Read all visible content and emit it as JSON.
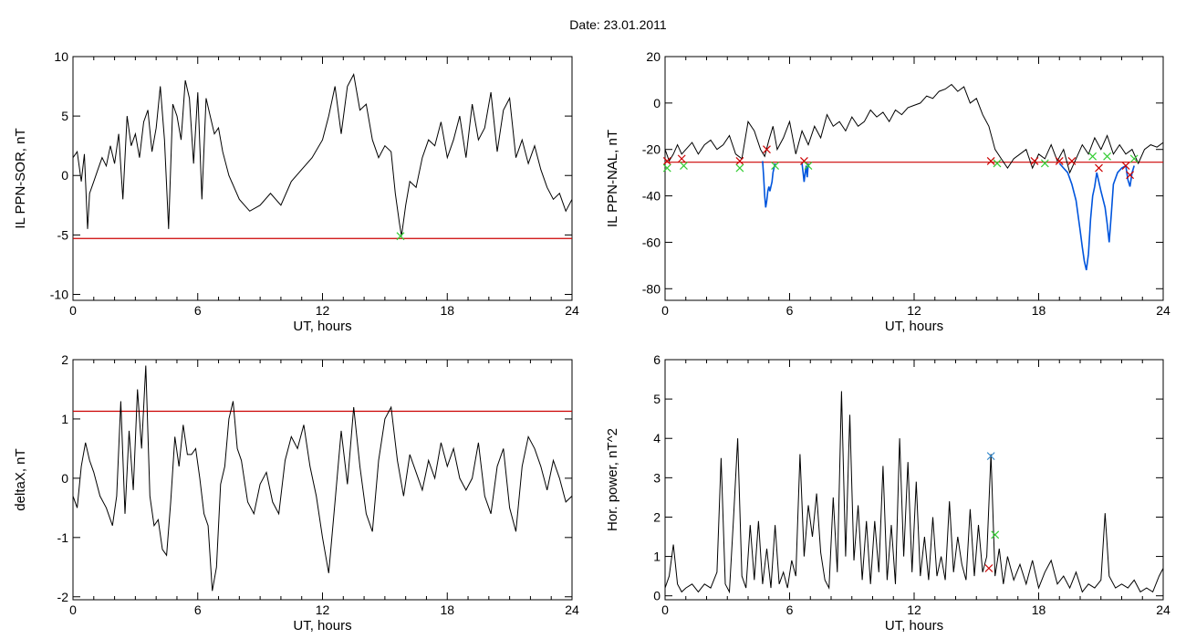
{
  "title": "Date:  23.01.2011",
  "chart_data": [
    {
      "type": "line",
      "xlabel": "UT, hours",
      "ylabel": "IL PPN-SOR, nT",
      "xlim": [
        0,
        24
      ],
      "ylim": [
        -10.5,
        10
      ],
      "xticks": [
        "0",
        "6",
        "12",
        "18",
        "24"
      ],
      "yticks": [
        -10,
        -5,
        0,
        5,
        10
      ],
      "threshold": -5.3,
      "threshold_color": "#cc0000",
      "series": [
        {
          "color": "#000000",
          "x": [
            0.0,
            0.2,
            0.4,
            0.55,
            0.7,
            0.8,
            1.0,
            1.2,
            1.4,
            1.6,
            1.8,
            2.0,
            2.2,
            2.4,
            2.6,
            2.8,
            3.0,
            3.2,
            3.4,
            3.6,
            3.8,
            4.0,
            4.2,
            4.4,
            4.6,
            4.8,
            5.0,
            5.2,
            5.4,
            5.6,
            5.8,
            6.0,
            6.2,
            6.4,
            6.6,
            6.8,
            7.0,
            7.2,
            7.5,
            8.0,
            8.5,
            9.0,
            9.5,
            10.0,
            10.5,
            11.0,
            11.5,
            12.0,
            12.3,
            12.6,
            12.9,
            13.2,
            13.5,
            13.8,
            14.1,
            14.4,
            14.7,
            15.0,
            15.3,
            15.5,
            15.7,
            15.8,
            16.0,
            16.2,
            16.5,
            16.8,
            17.1,
            17.4,
            17.7,
            18.0,
            18.3,
            18.6,
            18.9,
            19.2,
            19.5,
            19.8,
            20.1,
            20.4,
            20.7,
            21.0,
            21.3,
            21.6,
            21.9,
            22.2,
            22.5,
            22.8,
            23.1,
            23.4,
            23.7,
            24.0
          ],
          "y": [
            1.5,
            2.0,
            -0.5,
            1.8,
            -4.5,
            -1.5,
            -0.5,
            0.5,
            1.5,
            0.8,
            2.5,
            1.0,
            3.5,
            -2.0,
            5.0,
            2.5,
            3.5,
            1.5,
            4.5,
            5.5,
            2.0,
            4.0,
            7.5,
            3.0,
            -4.5,
            6.0,
            5.0,
            3.0,
            8.0,
            6.5,
            1.0,
            7.0,
            -2.0,
            6.5,
            5.0,
            3.5,
            4.0,
            2.0,
            0.0,
            -2.0,
            -3.0,
            -2.5,
            -1.5,
            -2.5,
            -0.5,
            0.5,
            1.5,
            3.0,
            5.0,
            7.5,
            3.5,
            7.5,
            8.5,
            5.5,
            6.0,
            3.0,
            1.5,
            2.5,
            2.0,
            -1.5,
            -4.0,
            -5.1,
            -2.5,
            -0.5,
            -1.0,
            1.5,
            3.0,
            2.5,
            4.5,
            1.5,
            3.0,
            5.0,
            1.5,
            6.0,
            3.0,
            4.0,
            7.0,
            2.0,
            5.5,
            6.5,
            1.5,
            3.0,
            1.0,
            2.5,
            0.5,
            -1.0,
            -2.0,
            -1.5,
            -3.0,
            -2.0
          ]
        }
      ],
      "markers": [
        {
          "x": 15.75,
          "y": -5.1,
          "color": "#33cc33"
        }
      ]
    },
    {
      "type": "line",
      "xlabel": "UT, hours",
      "ylabel": "IL PPN-NAL, nT",
      "xlim": [
        0,
        24
      ],
      "ylim": [
        -85,
        20
      ],
      "xticks": [
        "0",
        "6",
        "12",
        "18",
        "24"
      ],
      "yticks": [
        -80,
        -60,
        -40,
        -20,
        0,
        20
      ],
      "threshold": -25.5,
      "threshold_color": "#cc0000",
      "series": [
        {
          "color": "#000000",
          "x": [
            0.0,
            0.2,
            0.4,
            0.6,
            0.8,
            1.0,
            1.3,
            1.6,
            1.9,
            2.2,
            2.5,
            2.8,
            3.1,
            3.4,
            3.7,
            4.0,
            4.3,
            4.6,
            4.8,
            5.0,
            5.2,
            5.4,
            5.7,
            6.0,
            6.3,
            6.6,
            6.9,
            7.2,
            7.5,
            7.8,
            8.1,
            8.4,
            8.7,
            9.0,
            9.3,
            9.6,
            9.9,
            10.2,
            10.5,
            10.8,
            11.1,
            11.4,
            11.7,
            12.0,
            12.3,
            12.6,
            12.9,
            13.2,
            13.5,
            13.8,
            14.1,
            14.4,
            14.7,
            15.0,
            15.3,
            15.6,
            15.9,
            16.2,
            16.5,
            16.8,
            17.1,
            17.4,
            17.7,
            18.0,
            18.3,
            18.6,
            18.9,
            19.2,
            19.5,
            19.8,
            20.1,
            20.4,
            20.7,
            21.0,
            21.3,
            21.6,
            21.9,
            22.2,
            22.5,
            22.8,
            23.1,
            23.4,
            23.7,
            24.0
          ],
          "y": [
            -20,
            -25,
            -22,
            -18,
            -22,
            -20,
            -17,
            -22,
            -18,
            -16,
            -20,
            -18,
            -14,
            -22,
            -24,
            -8,
            -12,
            -20,
            -23,
            -16,
            -10,
            -20,
            -15,
            -8,
            -22,
            -12,
            -18,
            -10,
            -15,
            -5,
            -10,
            -8,
            -12,
            -6,
            -10,
            -8,
            -3,
            -6,
            -4,
            -8,
            -3,
            -5,
            -2,
            -1,
            0,
            3,
            2,
            5,
            6,
            8,
            5,
            7,
            0,
            2,
            -5,
            -10,
            -20,
            -24,
            -28,
            -24,
            -22,
            -20,
            -28,
            -22,
            -24,
            -18,
            -25,
            -20,
            -30,
            -24,
            -18,
            -22,
            -15,
            -20,
            -14,
            -22,
            -18,
            -22,
            -20,
            -26,
            -20,
            -18,
            -19,
            -17
          ]
        },
        {
          "color": "#0055dd",
          "x": [
            4.7,
            4.75,
            4.8,
            4.85,
            4.9,
            4.95,
            5.0,
            5.05,
            5.1,
            5.15,
            5.2,
            5.25,
            5.3
          ],
          "y": [
            -25,
            -32,
            -40,
            -45,
            -42,
            -38,
            -36,
            -38,
            -36,
            -34,
            -30,
            -28,
            -26
          ]
        },
        {
          "color": "#0055dd",
          "x": [
            6.6,
            6.65,
            6.7,
            6.75,
            6.8,
            6.85,
            6.9
          ],
          "y": [
            -26,
            -30,
            -34,
            -30,
            -27,
            -32,
            -26
          ]
        },
        {
          "color": "#0055dd",
          "x": [
            19.0,
            19.2,
            19.4,
            19.6,
            19.8,
            20.0,
            20.1,
            20.2,
            20.3,
            20.4,
            20.5,
            20.6,
            20.7,
            20.8,
            21.0,
            21.2,
            21.3,
            21.4,
            21.5,
            21.6,
            21.8,
            22.0,
            22.2,
            22.3,
            22.4,
            22.5,
            22.6
          ],
          "y": [
            -26,
            -28,
            -30,
            -35,
            -42,
            -55,
            -62,
            -68,
            -72,
            -65,
            -50,
            -40,
            -36,
            -30,
            -38,
            -45,
            -52,
            -60,
            -48,
            -35,
            -30,
            -28,
            -27,
            -33,
            -36,
            -30,
            -27
          ]
        }
      ],
      "markers": [
        {
          "x": 0.1,
          "y": -25,
          "color": "#cc0000"
        },
        {
          "x": 0.8,
          "y": -24,
          "color": "#cc0000"
        },
        {
          "x": 3.6,
          "y": -25,
          "color": "#cc0000"
        },
        {
          "x": 4.9,
          "y": -20,
          "color": "#cc0000"
        },
        {
          "x": 6.7,
          "y": -25,
          "color": "#cc0000"
        },
        {
          "x": 15.7,
          "y": -25,
          "color": "#cc0000"
        },
        {
          "x": 17.8,
          "y": -25,
          "color": "#cc0000"
        },
        {
          "x": 19.0,
          "y": -25,
          "color": "#cc0000"
        },
        {
          "x": 19.6,
          "y": -25,
          "color": "#cc0000"
        },
        {
          "x": 20.9,
          "y": -28,
          "color": "#cc0000"
        },
        {
          "x": 22.2,
          "y": -27,
          "color": "#cc0000"
        },
        {
          "x": 22.4,
          "y": -31,
          "color": "#cc0000"
        },
        {
          "x": 0.1,
          "y": -28,
          "color": "#33cc33"
        },
        {
          "x": 0.9,
          "y": -27,
          "color": "#33cc33"
        },
        {
          "x": 3.6,
          "y": -28,
          "color": "#33cc33"
        },
        {
          "x": 5.3,
          "y": -27,
          "color": "#33cc33"
        },
        {
          "x": 6.9,
          "y": -27,
          "color": "#33cc33"
        },
        {
          "x": 16.0,
          "y": -26,
          "color": "#33cc33"
        },
        {
          "x": 18.3,
          "y": -26,
          "color": "#33cc33"
        },
        {
          "x": 20.6,
          "y": -23,
          "color": "#33cc33"
        },
        {
          "x": 21.3,
          "y": -23,
          "color": "#33cc33"
        },
        {
          "x": 22.6,
          "y": -24,
          "color": "#33cc33"
        }
      ]
    },
    {
      "type": "line",
      "xlabel": "UT, hours",
      "ylabel": "deltaX, nT",
      "xlim": [
        0,
        24
      ],
      "ylim": [
        -2.05,
        2
      ],
      "xticks": [
        "0",
        "6",
        "12",
        "18",
        "24"
      ],
      "yticks": [
        -2,
        -1,
        0,
        1,
        2
      ],
      "threshold": 1.13,
      "threshold_color": "#cc0000",
      "series": [
        {
          "color": "#000000",
          "x": [
            0.0,
            0.2,
            0.4,
            0.6,
            0.8,
            1.0,
            1.3,
            1.6,
            1.9,
            2.1,
            2.3,
            2.5,
            2.7,
            2.9,
            3.1,
            3.3,
            3.5,
            3.7,
            3.9,
            4.1,
            4.3,
            4.5,
            4.7,
            4.9,
            5.1,
            5.3,
            5.5,
            5.7,
            5.9,
            6.1,
            6.3,
            6.5,
            6.7,
            6.9,
            7.1,
            7.3,
            7.5,
            7.7,
            7.9,
            8.1,
            8.4,
            8.7,
            9.0,
            9.3,
            9.6,
            9.9,
            10.2,
            10.5,
            10.8,
            11.1,
            11.4,
            11.7,
            12.0,
            12.3,
            12.6,
            12.9,
            13.2,
            13.5,
            13.8,
            14.1,
            14.4,
            14.7,
            15.0,
            15.3,
            15.6,
            15.9,
            16.2,
            16.5,
            16.8,
            17.1,
            17.4,
            17.7,
            18.0,
            18.3,
            18.6,
            18.9,
            19.2,
            19.5,
            19.8,
            20.1,
            20.4,
            20.7,
            21.0,
            21.3,
            21.6,
            21.9,
            22.2,
            22.5,
            22.8,
            23.1,
            23.4,
            23.7,
            24.0
          ],
          "y": [
            -0.3,
            -0.5,
            0.2,
            0.6,
            0.3,
            0.1,
            -0.3,
            -0.5,
            -0.8,
            -0.3,
            1.3,
            -0.6,
            0.8,
            -0.2,
            1.5,
            0.5,
            1.9,
            -0.3,
            -0.8,
            -0.7,
            -1.2,
            -1.3,
            -0.4,
            0.7,
            0.2,
            0.9,
            0.4,
            0.4,
            0.5,
            0.0,
            -0.6,
            -0.8,
            -1.9,
            -1.5,
            -0.1,
            0.2,
            1.0,
            1.3,
            0.5,
            0.3,
            -0.4,
            -0.6,
            -0.1,
            0.1,
            -0.4,
            -0.6,
            0.3,
            0.7,
            0.5,
            0.9,
            0.2,
            -0.3,
            -1.0,
            -1.6,
            -0.4,
            0.8,
            -0.1,
            1.2,
            0.2,
            -0.6,
            -0.9,
            0.3,
            1.0,
            1.2,
            0.3,
            -0.3,
            0.4,
            0.1,
            -0.2,
            0.3,
            0.0,
            0.6,
            0.2,
            0.5,
            0.0,
            -0.2,
            0.0,
            0.6,
            -0.3,
            -0.6,
            0.2,
            0.5,
            -0.5,
            -0.9,
            0.2,
            0.7,
            0.5,
            0.2,
            -0.2,
            0.3,
            0.0,
            -0.4,
            -0.3
          ]
        }
      ],
      "markers": []
    },
    {
      "type": "line",
      "xlabel": "UT, hours",
      "ylabel": "Hor. power, nT^2",
      "xlim": [
        0,
        24
      ],
      "ylim": [
        -0.1,
        6
      ],
      "xticks": [
        "0",
        "6",
        "12",
        "18",
        "24"
      ],
      "yticks": [
        0,
        1,
        2,
        3,
        4,
        5,
        6
      ],
      "threshold": null,
      "series": [
        {
          "color": "#000000",
          "x": [
            0.0,
            0.2,
            0.4,
            0.6,
            0.8,
            1.0,
            1.3,
            1.6,
            1.9,
            2.2,
            2.5,
            2.7,
            2.9,
            3.1,
            3.3,
            3.5,
            3.7,
            3.9,
            4.1,
            4.3,
            4.5,
            4.7,
            4.9,
            5.1,
            5.3,
            5.5,
            5.7,
            5.9,
            6.1,
            6.3,
            6.5,
            6.7,
            6.9,
            7.1,
            7.3,
            7.5,
            7.7,
            7.9,
            8.1,
            8.3,
            8.5,
            8.7,
            8.9,
            9.1,
            9.3,
            9.5,
            9.7,
            9.9,
            10.1,
            10.3,
            10.5,
            10.7,
            10.9,
            11.1,
            11.3,
            11.5,
            11.7,
            11.9,
            12.1,
            12.3,
            12.5,
            12.7,
            12.9,
            13.1,
            13.3,
            13.5,
            13.7,
            13.9,
            14.1,
            14.3,
            14.5,
            14.7,
            14.9,
            15.1,
            15.3,
            15.5,
            15.7,
            15.9,
            16.1,
            16.3,
            16.5,
            16.8,
            17.1,
            17.4,
            17.7,
            18.0,
            18.3,
            18.6,
            18.9,
            19.2,
            19.5,
            19.8,
            20.1,
            20.4,
            20.7,
            21.0,
            21.2,
            21.4,
            21.7,
            22.0,
            22.3,
            22.6,
            22.9,
            23.2,
            23.5,
            23.8,
            24.0
          ],
          "y": [
            0.2,
            0.5,
            1.3,
            0.3,
            0.1,
            0.2,
            0.3,
            0.1,
            0.3,
            0.2,
            0.6,
            3.5,
            0.3,
            0.1,
            2.0,
            4.0,
            0.5,
            0.2,
            1.8,
            0.4,
            1.9,
            0.3,
            1.2,
            0.2,
            1.8,
            0.3,
            0.6,
            0.2,
            0.9,
            0.5,
            3.6,
            1.0,
            2.3,
            1.5,
            2.6,
            1.1,
            0.4,
            0.2,
            2.5,
            0.6,
            5.2,
            1.0,
            4.6,
            0.9,
            2.3,
            0.4,
            1.9,
            0.3,
            1.9,
            0.6,
            3.3,
            0.4,
            1.8,
            0.3,
            4.0,
            1.0,
            3.4,
            0.6,
            2.9,
            0.5,
            1.5,
            0.4,
            2.0,
            0.5,
            1.0,
            0.4,
            2.4,
            0.6,
            1.5,
            0.8,
            0.4,
            2.2,
            0.5,
            1.8,
            0.6,
            1.0,
            3.6,
            0.5,
            1.2,
            0.3,
            1.0,
            0.4,
            0.8,
            0.3,
            0.9,
            0.2,
            0.6,
            0.9,
            0.3,
            0.5,
            0.2,
            0.6,
            0.1,
            0.3,
            0.2,
            0.4,
            2.1,
            0.5,
            0.2,
            0.3,
            0.2,
            0.4,
            0.1,
            0.2,
            0.1,
            0.5,
            0.7
          ]
        }
      ],
      "markers": [
        {
          "x": 15.7,
          "y": 3.55,
          "color": "#3388cc"
        },
        {
          "x": 15.9,
          "y": 1.55,
          "color": "#33cc33"
        },
        {
          "x": 15.6,
          "y": 0.7,
          "color": "#cc0000"
        }
      ]
    }
  ]
}
